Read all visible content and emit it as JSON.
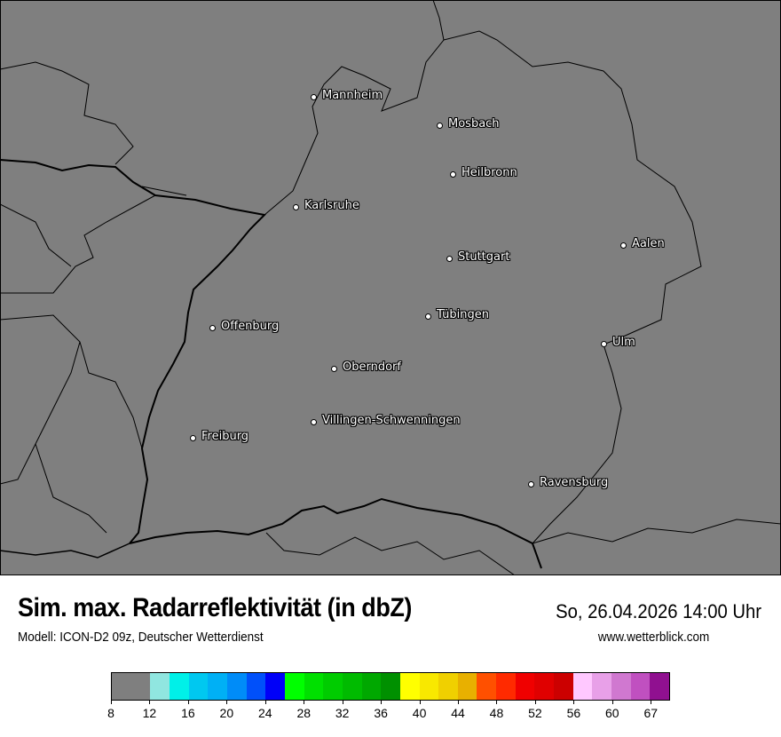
{
  "map": {
    "background_color": "#7f7f7f",
    "cities": [
      {
        "name": "Mannheim"
      },
      {
        "name": "Mosbach"
      },
      {
        "name": "Heilbronn"
      },
      {
        "name": "Karlsruhe"
      },
      {
        "name": "Aalen"
      },
      {
        "name": "Stuttgart"
      },
      {
        "name": "Tübingen"
      },
      {
        "name": "Offenburg"
      },
      {
        "name": "Ulm"
      },
      {
        "name": "Oberndorf"
      },
      {
        "name": "Villingen-Schwenningen"
      },
      {
        "name": "Freiburg"
      },
      {
        "name": "Ravensburg"
      }
    ]
  },
  "header": {
    "title": "Sim. max. Radarreflektivität (in dbZ)",
    "datetime": "So, 26.04.2026 14:00 Uhr",
    "subtitle": "Modell: ICON-D2 09z, Deutscher Wetterdienst",
    "website": "www.wetterblick.com"
  },
  "legend": {
    "unit": "dbZ",
    "colors": [
      "#7f7f7f",
      "#90e6e0",
      "#00f0e8",
      "#00c8f0",
      "#00b0f5",
      "#008cf8",
      "#0050fa",
      "#0000f8",
      "#00ff00",
      "#00e000",
      "#00cc00",
      "#00bb00",
      "#00a800",
      "#009000",
      "#ffff00",
      "#f8e800",
      "#f0d000",
      "#e8b000",
      "#ff5000",
      "#ff2a00",
      "#f00000",
      "#e00000",
      "#cc0000",
      "#ffc8ff",
      "#e8a0e8",
      "#d078d0",
      "#c050c0",
      "#901090"
    ],
    "ticks": [
      "8",
      "12",
      "16",
      "20",
      "24",
      "28",
      "32",
      "36",
      "40",
      "44",
      "48",
      "52",
      "56",
      "60",
      "67"
    ]
  }
}
